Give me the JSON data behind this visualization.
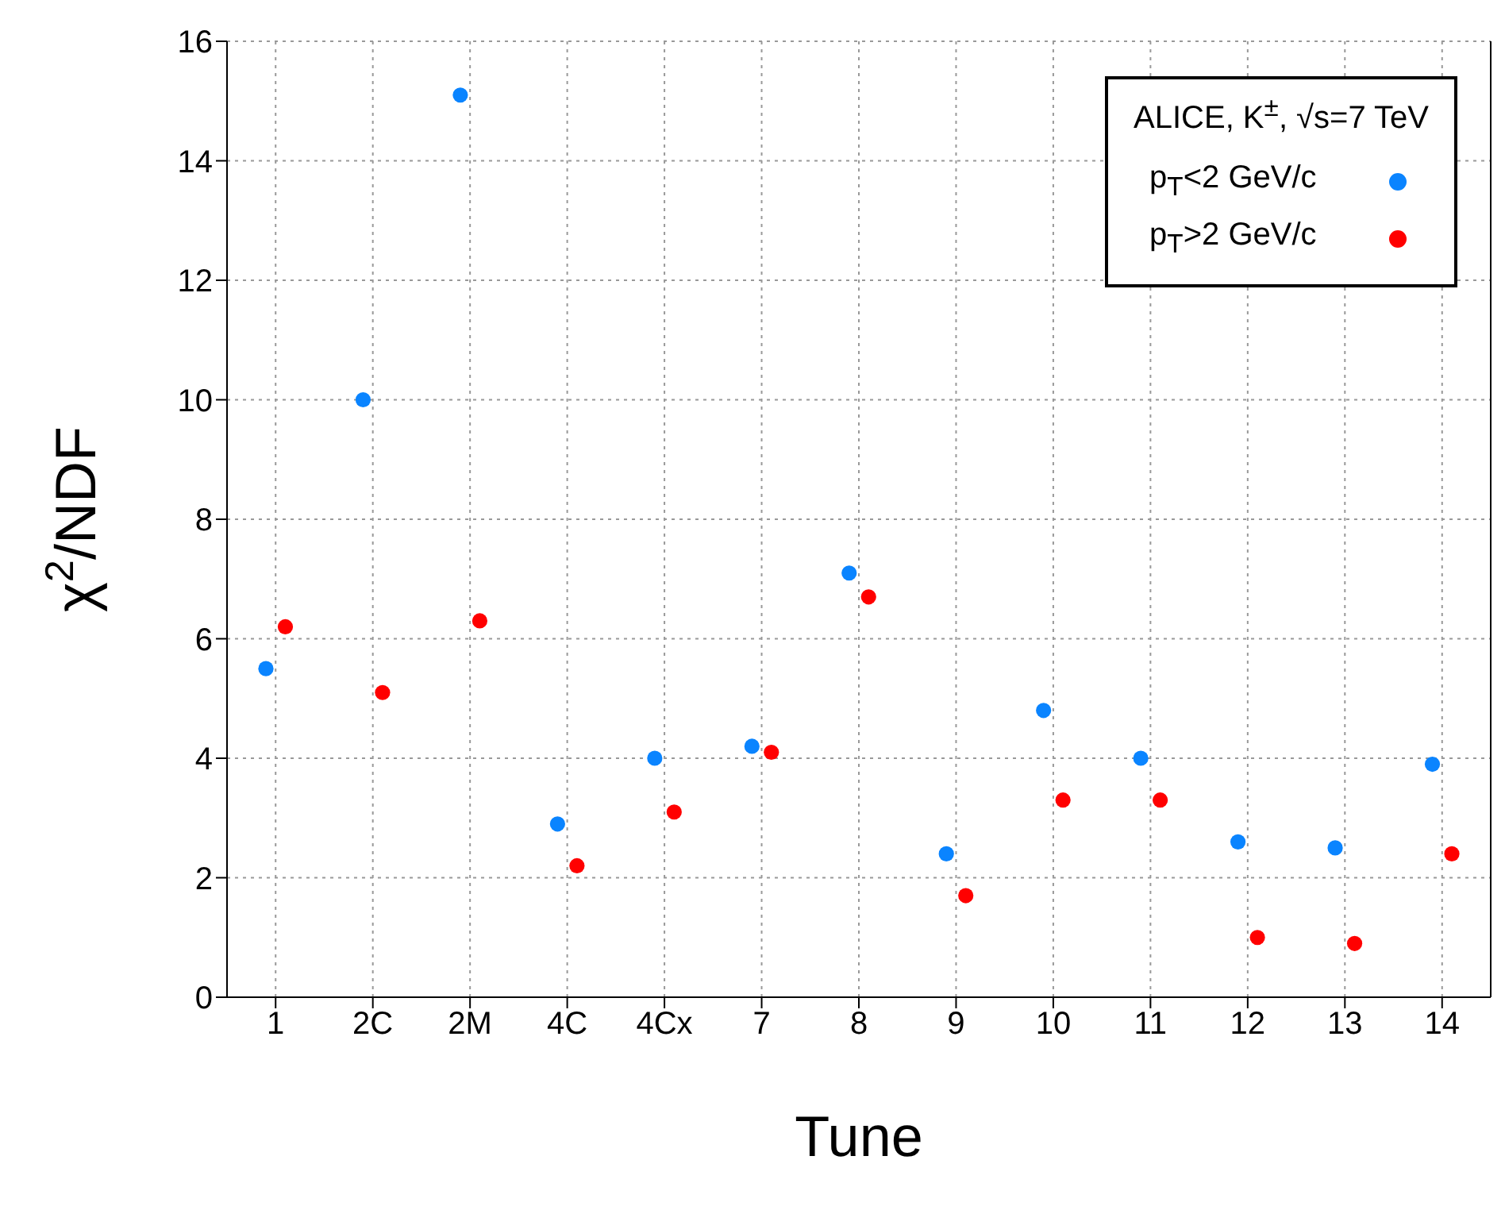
{
  "chart_data": {
    "type": "scatter",
    "xlabel": "Tune",
    "ylabel": "χ$^{2}$/NDF",
    "legend_title": "ALICE, K$^{±}$, √s=7 TeV",
    "categories": [
      "1",
      "2C",
      "2M",
      "4C",
      "4Cx",
      "7",
      "8",
      "9",
      "10",
      "11",
      "12",
      "13",
      "14"
    ],
    "series": [
      {
        "name": "p$_{T}$<2 GeV/c",
        "color": "#0a84ff",
        "values": [
          5.5,
          10.0,
          15.1,
          2.9,
          4.0,
          4.2,
          7.1,
          2.4,
          4.8,
          4.0,
          2.6,
          2.5,
          3.9
        ]
      },
      {
        "name": "p$_{T}$>2 GeV/c",
        "color": "#ff0000",
        "values": [
          6.2,
          5.1,
          6.3,
          2.2,
          3.1,
          4.1,
          6.7,
          1.7,
          3.3,
          3.3,
          1.0,
          0.9,
          2.4
        ]
      }
    ],
    "ylim": [
      0,
      16
    ],
    "yticks": [
      0,
      2,
      4,
      6,
      8,
      10,
      12,
      14,
      16
    ],
    "grid": true,
    "legend": "top right",
    "marker": "circle"
  }
}
